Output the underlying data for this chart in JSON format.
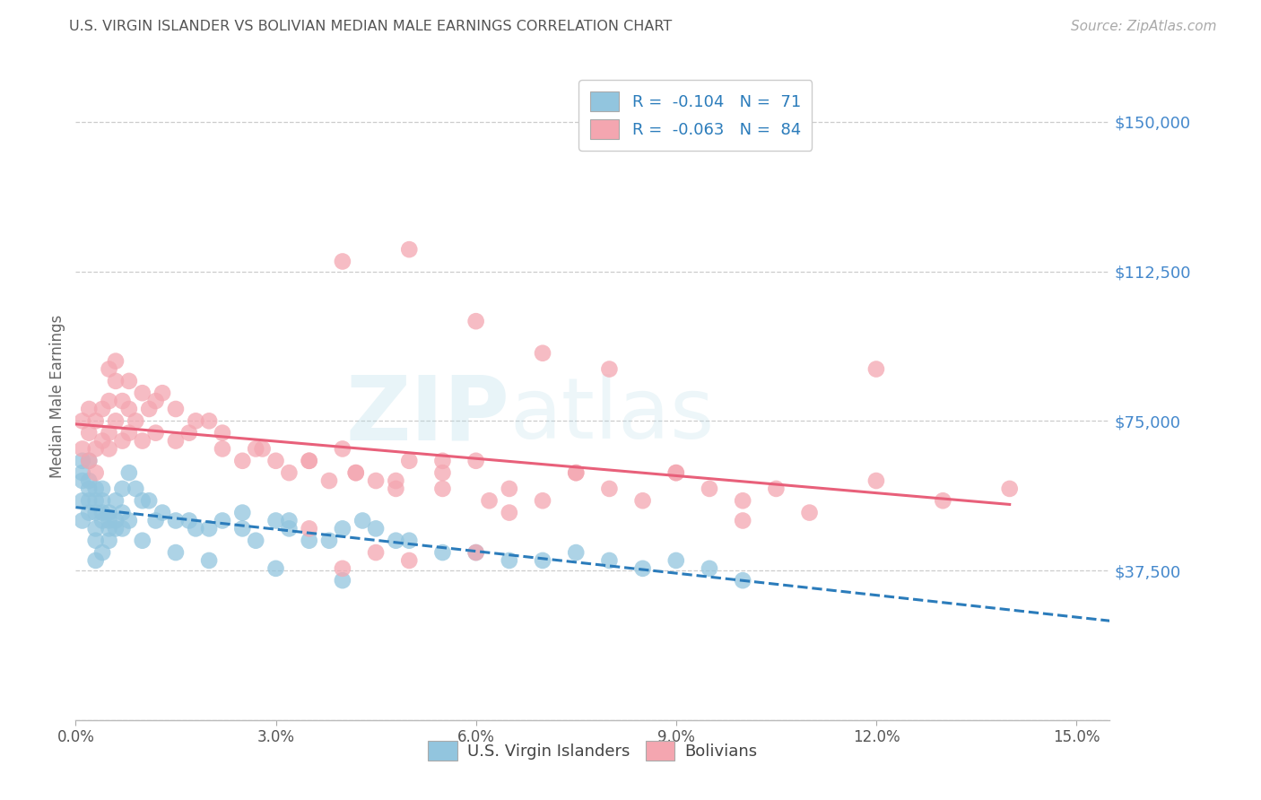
{
  "title": "U.S. VIRGIN ISLANDER VS BOLIVIAN MEDIAN MALE EARNINGS CORRELATION CHART",
  "source": "Source: ZipAtlas.com",
  "ylabel": "Median Male Earnings",
  "watermark": "ZIPatlas",
  "xlim": [
    0.0,
    0.155
  ],
  "ylim": [
    0,
    162500
  ],
  "yticks": [
    0,
    37500,
    75000,
    112500,
    150000
  ],
  "ytick_labels": [
    "",
    "$37,500",
    "$75,000",
    "$112,500",
    "$150,000"
  ],
  "xtick_vals": [
    0.0,
    0.03,
    0.06,
    0.09,
    0.12,
    0.15
  ],
  "xtick_labels": [
    "0.0%",
    "3.0%",
    "6.0%",
    "9.0%",
    "12.0%",
    "15.0%"
  ],
  "legend_r1": "-0.104",
  "legend_n1": "71",
  "legend_r2": "-0.063",
  "legend_n2": "84",
  "series1_label": "U.S. Virgin Islanders",
  "series2_label": "Bolivians",
  "series1_color": "#92C5DE",
  "series2_color": "#F4A6B0",
  "trendline1_color": "#2B7CBB",
  "trendline2_color": "#E8607A",
  "legend_text_color": "#333333",
  "legend_num_color": "#2B7CBB",
  "grid_color": "#CCCCCC",
  "title_color": "#555555",
  "ytick_color": "#4488CC",
  "xtick_color": "#555555",
  "bg_color": "#FFFFFF",
  "s1x": [
    0.001,
    0.001,
    0.001,
    0.001,
    0.001,
    0.002,
    0.002,
    0.002,
    0.002,
    0.002,
    0.003,
    0.003,
    0.003,
    0.003,
    0.003,
    0.004,
    0.004,
    0.004,
    0.004,
    0.005,
    0.005,
    0.005,
    0.006,
    0.006,
    0.007,
    0.007,
    0.008,
    0.009,
    0.01,
    0.011,
    0.012,
    0.013,
    0.015,
    0.017,
    0.018,
    0.02,
    0.022,
    0.025,
    0.027,
    0.03,
    0.032,
    0.035,
    0.038,
    0.04,
    0.043,
    0.045,
    0.048,
    0.05,
    0.055,
    0.06,
    0.065,
    0.07,
    0.075,
    0.08,
    0.085,
    0.09,
    0.095,
    0.1,
    0.025,
    0.032,
    0.003,
    0.004,
    0.005,
    0.006,
    0.007,
    0.008,
    0.01,
    0.015,
    0.02,
    0.03,
    0.04
  ],
  "s1y": [
    55000,
    60000,
    62000,
    65000,
    50000,
    52000,
    55000,
    58000,
    60000,
    65000,
    45000,
    48000,
    52000,
    55000,
    58000,
    50000,
    52000,
    55000,
    58000,
    48000,
    50000,
    52000,
    50000,
    55000,
    52000,
    58000,
    62000,
    58000,
    55000,
    55000,
    50000,
    52000,
    50000,
    50000,
    48000,
    48000,
    50000,
    48000,
    45000,
    50000,
    48000,
    45000,
    45000,
    48000,
    50000,
    48000,
    45000,
    45000,
    42000,
    42000,
    40000,
    40000,
    42000,
    40000,
    38000,
    40000,
    38000,
    35000,
    52000,
    50000,
    40000,
    42000,
    45000,
    48000,
    48000,
    50000,
    45000,
    42000,
    40000,
    38000,
    35000
  ],
  "s2x": [
    0.001,
    0.001,
    0.002,
    0.002,
    0.002,
    0.003,
    0.003,
    0.003,
    0.004,
    0.004,
    0.005,
    0.005,
    0.005,
    0.006,
    0.006,
    0.007,
    0.007,
    0.008,
    0.008,
    0.009,
    0.01,
    0.011,
    0.012,
    0.013,
    0.015,
    0.017,
    0.02,
    0.022,
    0.025,
    0.027,
    0.03,
    0.032,
    0.035,
    0.038,
    0.04,
    0.042,
    0.045,
    0.048,
    0.05,
    0.055,
    0.06,
    0.065,
    0.07,
    0.075,
    0.08,
    0.085,
    0.09,
    0.095,
    0.1,
    0.105,
    0.11,
    0.12,
    0.13,
    0.14,
    0.005,
    0.006,
    0.008,
    0.01,
    0.012,
    0.015,
    0.018,
    0.022,
    0.028,
    0.035,
    0.042,
    0.048,
    0.055,
    0.062,
    0.04,
    0.05,
    0.06,
    0.07,
    0.08,
    0.09,
    0.1,
    0.035,
    0.045,
    0.055,
    0.065,
    0.075,
    0.04,
    0.12,
    0.05,
    0.06
  ],
  "s2y": [
    68000,
    75000,
    65000,
    72000,
    78000,
    62000,
    68000,
    75000,
    70000,
    78000,
    68000,
    72000,
    80000,
    75000,
    85000,
    70000,
    80000,
    72000,
    78000,
    75000,
    70000,
    78000,
    72000,
    82000,
    70000,
    72000,
    75000,
    68000,
    65000,
    68000,
    65000,
    62000,
    65000,
    60000,
    68000,
    62000,
    60000,
    58000,
    65000,
    62000,
    65000,
    58000,
    55000,
    62000,
    58000,
    55000,
    62000,
    58000,
    55000,
    58000,
    52000,
    60000,
    55000,
    58000,
    88000,
    90000,
    85000,
    82000,
    80000,
    78000,
    75000,
    72000,
    68000,
    65000,
    62000,
    60000,
    58000,
    55000,
    115000,
    118000,
    100000,
    92000,
    88000,
    62000,
    50000,
    48000,
    42000,
    65000,
    52000,
    62000,
    38000,
    88000,
    40000,
    42000
  ]
}
